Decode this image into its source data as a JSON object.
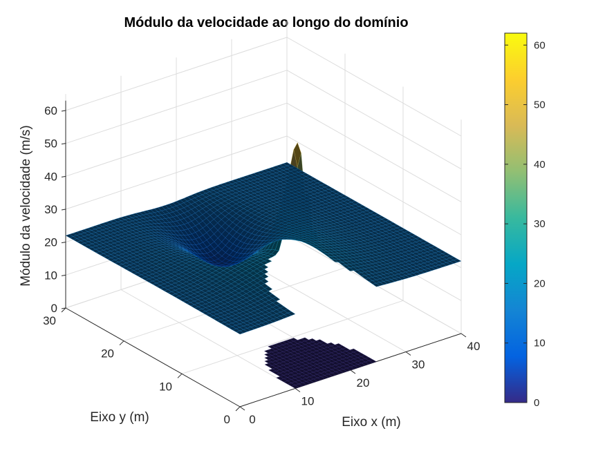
{
  "chart_data": {
    "type": "surface",
    "title": "Módulo da velocidade ao longo do domínio",
    "xlabel": "Eixo x (m)",
    "ylabel": "Eixo y (m)",
    "zlabel": "Módulo da velocidade (m/s)",
    "x_ticks": [
      "0",
      "10",
      "20",
      "30",
      "40"
    ],
    "y_ticks": [
      "0",
      "10",
      "20",
      "30"
    ],
    "z_ticks": [
      "0",
      "10",
      "20",
      "30",
      "40",
      "50",
      "60"
    ],
    "xlim": [
      0,
      40
    ],
    "ylim": [
      0,
      30
    ],
    "zlim": [
      0,
      60
    ],
    "grid": true,
    "colormap": "parula",
    "colorbar": {
      "range": [
        0,
        62
      ],
      "ticks": [
        "0",
        "10",
        "20",
        "30",
        "40",
        "50",
        "60"
      ],
      "placement": "right"
    },
    "colormap_colors": [
      "#352a87",
      "#0363e1",
      "#1485d4",
      "#06a7c6",
      "#38b99e",
      "#92bf73",
      "#d9ba56",
      "#fcce2e",
      "#f9fb0e"
    ],
    "surface": {
      "plate_speed": 0,
      "far_field_speed": 15,
      "peak_speed": 62,
      "peak_location": {
        "x": 20,
        "y": 7
      },
      "wall_notch": {
        "x_from": 10,
        "x_to": 25,
        "y_from": 0,
        "y_to": 10
      }
    }
  }
}
